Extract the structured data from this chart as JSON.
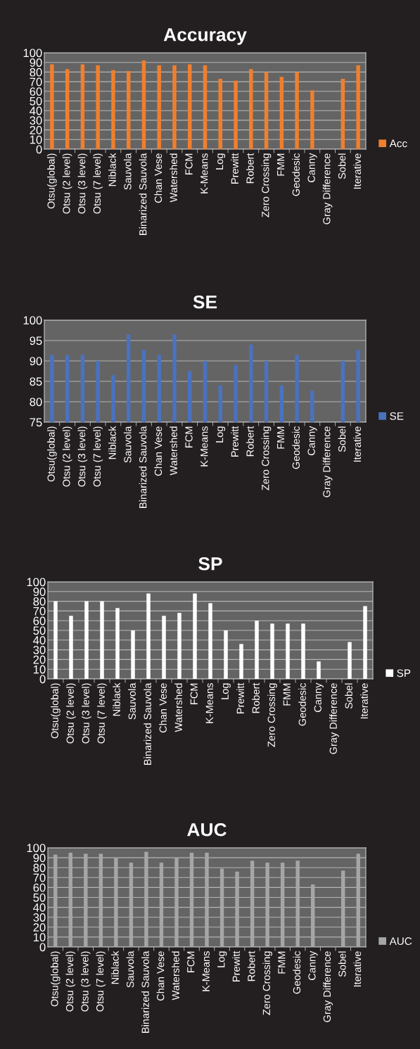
{
  "chart_data": [
    {
      "type": "bar",
      "title": "Accuracy",
      "categories": [
        "Otsu(global)",
        "Otsu (2 level)",
        "Otsu (3 level)",
        "Otsu (7 level)",
        "Niblack",
        "Sauvola",
        "Binarized Sauvola",
        "Chan Vese",
        "Watershed",
        "FCM",
        "K-Means",
        "Log",
        "Prewitt",
        "Robert",
        "Zero Crossing",
        "FMM",
        "Geodesic",
        "Canny",
        "Gray Difference",
        "Sobel",
        "Iterative"
      ],
      "series": [
        {
          "name": "Acc",
          "color": "#f07f2e",
          "values": [
            88,
            83,
            88,
            87,
            82,
            81,
            92,
            87,
            87,
            88,
            87,
            73,
            71,
            83,
            80,
            75,
            80,
            61,
            null,
            73,
            87
          ]
        }
      ],
      "ylim": [
        0,
        100
      ],
      "yticks": [
        0,
        10,
        20,
        30,
        40,
        50,
        60,
        70,
        80,
        90,
        100
      ],
      "grid": "y",
      "legend": "right"
    },
    {
      "type": "bar",
      "title": "SE",
      "categories": [
        "Otsu(global)",
        "Otsu (2 level)",
        "Otsu (3 level)",
        "Otsu (7 level)",
        "Niblack",
        "Sauvola",
        "Binarized Sauvola",
        "Chan Vese",
        "Watershed",
        "FCM",
        "K-Means",
        "Log",
        "Prewitt",
        "Robert",
        "Zero Crossing",
        "FMM",
        "Geodesic",
        "Canny",
        "Gray Difference",
        "Sobel",
        "Iterative"
      ],
      "series": [
        {
          "name": "SE",
          "color": "#4a72c0",
          "values": [
            91.5,
            91.5,
            91.5,
            90,
            86.5,
            96.5,
            92.7,
            91.5,
            96.5,
            87.5,
            90,
            84,
            89,
            94,
            90,
            84,
            91.5,
            82.7,
            null,
            90,
            92.7
          ]
        }
      ],
      "ylim": [
        75,
        100
      ],
      "yticks": [
        75,
        80,
        85,
        90,
        95,
        100
      ],
      "grid": "y",
      "legend": "right"
    },
    {
      "type": "bar",
      "title": "SP",
      "categories": [
        "Otsu(global)",
        "Otsu (2 level)",
        "Otsu (3 level)",
        "Otsu (7 level)",
        "Niblack",
        "Sauvola",
        "Binarized Sauvola",
        "Chan Vese",
        "Watershed",
        "FCM",
        "K-Means",
        "Log",
        "Prewitt",
        "Robert",
        "Zero Crossing",
        "FMM",
        "Geodesic",
        "Canny",
        "Gray Difference",
        "Sobel",
        "Iterative"
      ],
      "series": [
        {
          "name": "SP",
          "color": "#ffffff",
          "values": [
            80,
            65,
            80,
            80,
            73,
            50,
            88,
            65,
            68,
            88,
            78,
            50,
            36,
            60,
            57,
            57,
            57,
            18,
            null,
            38,
            75
          ]
        }
      ],
      "ylim": [
        0,
        100
      ],
      "yticks": [
        0,
        10,
        20,
        30,
        40,
        50,
        60,
        70,
        80,
        90,
        100
      ],
      "grid": "y",
      "legend": "right"
    },
    {
      "type": "bar",
      "title": "AUC",
      "categories": [
        "Otsu(global)",
        "Otsu (2 level)",
        "Otsu (3 level)",
        "Otsu (7 level)",
        "Niblack",
        "Sauvola",
        "Binarized Sauvola",
        "Chan Vese",
        "Watershed",
        "FCM",
        "K-Means",
        "Log",
        "Prewitt",
        "Robert",
        "Zero Crossing",
        "FMM",
        "Geodesic",
        "Canny",
        "Gray Difference",
        "Sobel",
        "Iterative"
      ],
      "series": [
        {
          "name": "AUC",
          "color": "#a6a6a6",
          "values": [
            93,
            95,
            94,
            94,
            90,
            85,
            96,
            85,
            90,
            95,
            95,
            79,
            76,
            87,
            85,
            85,
            87,
            63,
            null,
            77,
            94
          ]
        }
      ],
      "ylim": [
        0,
        100
      ],
      "yticks": [
        0,
        10,
        20,
        30,
        40,
        50,
        60,
        70,
        80,
        90,
        100
      ],
      "grid": "y",
      "legend": "right"
    }
  ]
}
